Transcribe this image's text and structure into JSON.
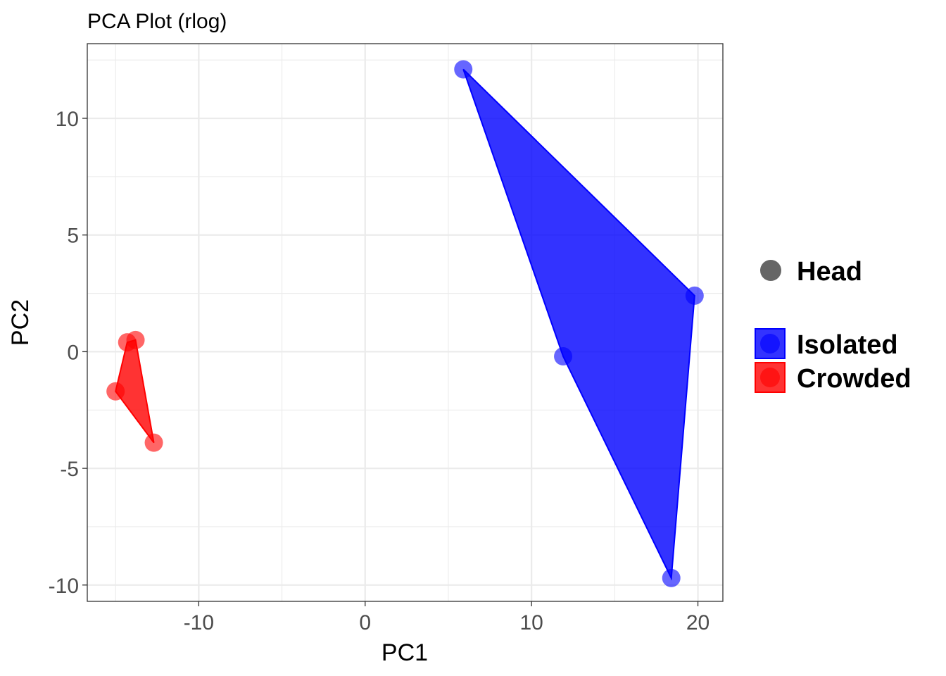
{
  "chart_data": {
    "type": "scatter",
    "title": "PCA Plot (rlog)",
    "xlabel": "PC1",
    "ylabel": "PC2",
    "xlim": [
      -16.7,
      21.5
    ],
    "ylim": [
      -10.7,
      13.2
    ],
    "xticks": [
      -10,
      0,
      10,
      20
    ],
    "yticks": [
      -10,
      -5,
      0,
      5,
      10
    ],
    "grid": true,
    "legend_position": "right",
    "shape_legend": {
      "label": "Head",
      "color": "#666666"
    },
    "series": [
      {
        "name": "Isolated",
        "color": "#0000ff",
        "points": [
          [
            5.9,
            12.1
          ],
          [
            19.8,
            2.4
          ],
          [
            11.9,
            -0.2
          ],
          [
            18.4,
            -9.7
          ]
        ]
      },
      {
        "name": "Crowded",
        "color": "#ff0000",
        "points": [
          [
            -14.3,
            0.4
          ],
          [
            -13.8,
            0.5
          ],
          [
            -15.0,
            -1.7
          ],
          [
            -12.7,
            -3.9
          ]
        ]
      }
    ]
  }
}
